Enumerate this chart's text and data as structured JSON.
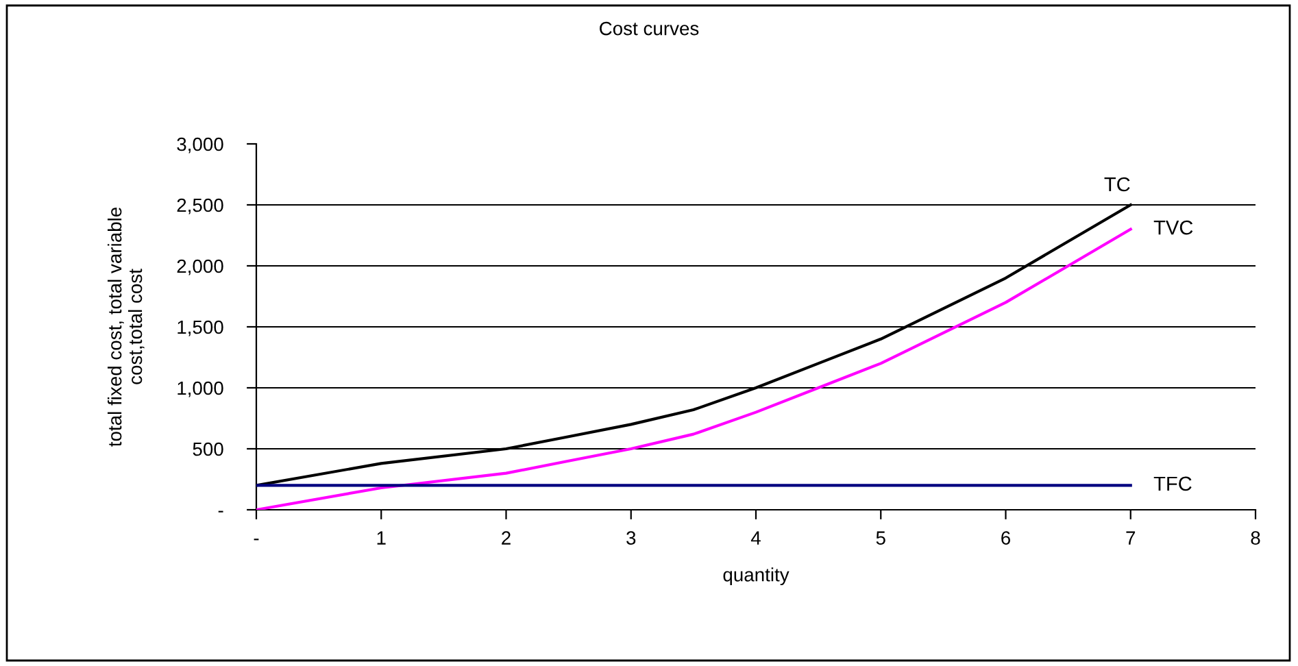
{
  "chart_data": {
    "type": "line",
    "title": "Cost curves",
    "xlabel": "quantity",
    "ylabel": "total fixed cost, total variable\ncost,total cost",
    "x": [
      0,
      1,
      2,
      2.5,
      3,
      3.5,
      4,
      4.5,
      5,
      6,
      7
    ],
    "series": [
      {
        "name": "TC",
        "color": "#000000",
        "values": [
          200,
          380,
          500,
          600,
          700,
          820,
          1000,
          1200,
          1400,
          1900,
          2500
        ]
      },
      {
        "name": "TVC",
        "color": "#ff00ff",
        "values": [
          0,
          180,
          300,
          400,
          500,
          620,
          800,
          1000,
          1200,
          1700,
          2300
        ]
      },
      {
        "name": "TFC",
        "color": "#000080",
        "values": [
          200,
          200,
          200,
          200,
          200,
          200,
          200,
          200,
          200,
          200,
          200
        ]
      }
    ],
    "xlim": [
      0,
      8
    ],
    "xticks": [
      {
        "value": 0,
        "label": "-"
      },
      1,
      2,
      3,
      4,
      5,
      6,
      7,
      8
    ],
    "ylim": [
      0,
      3000
    ],
    "yticks": [
      {
        "value": 0,
        "label": "-"
      },
      500,
      {
        "value": 1000,
        "label": "1,000"
      },
      {
        "value": 1500,
        "label": "1,500"
      },
      {
        "value": 2000,
        "label": "2,000"
      },
      {
        "value": 2500,
        "label": "2,500"
      },
      {
        "value": 3000,
        "label": "3,000"
      }
    ],
    "grid": "y",
    "legend": false,
    "marker": "none",
    "line_style": "solid"
  }
}
